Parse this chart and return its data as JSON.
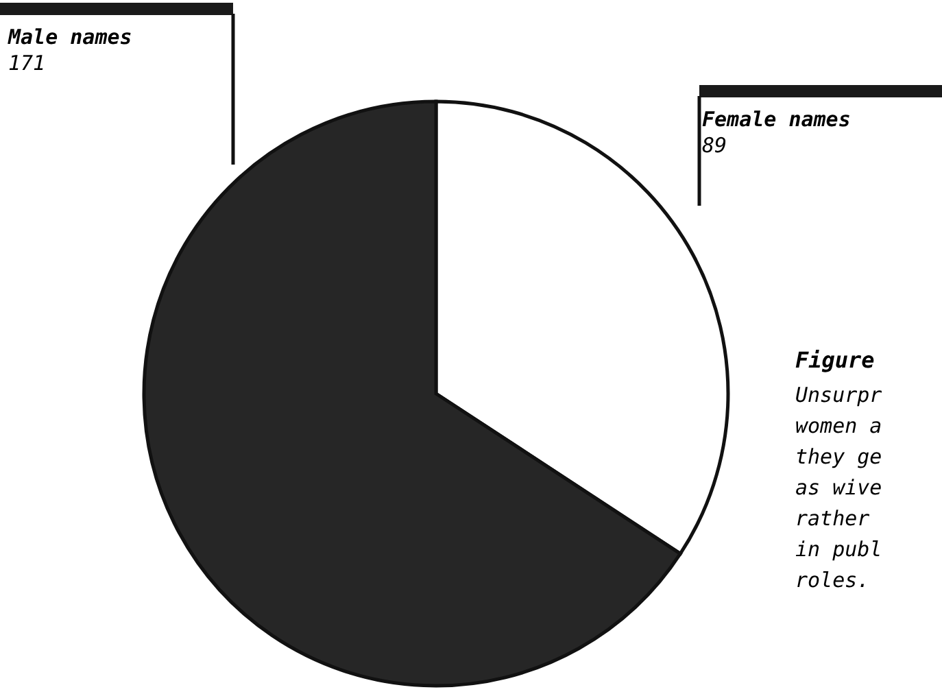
{
  "chart_data": {
    "type": "pie",
    "title": "Figure",
    "categories": [
      "Female names",
      "Male names"
    ],
    "values": [
      89,
      171
    ],
    "colors": [
      "#ffffff",
      "#262626"
    ],
    "data_labels": true,
    "annotations": [
      "Unsurpr",
      "women a",
      "they ge",
      "as wive",
      "rather",
      "in publ",
      "roles."
    ]
  }
}
